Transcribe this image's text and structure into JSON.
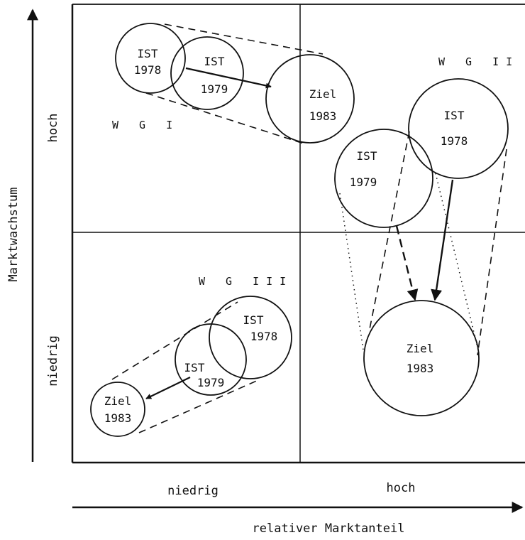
{
  "axes": {
    "y_title": "Marktwachstum",
    "x_title": "relativer Marktanteil",
    "y_high": "hoch",
    "y_low": "niedrig",
    "x_low": "niedrig",
    "x_high": "hoch"
  },
  "groups": [
    {
      "name": "W G I",
      "circles": [
        {
          "l1": "IST",
          "l2": "1978"
        },
        {
          "l1": "IST",
          "l2": "1979"
        },
        {
          "l1": "Ziel",
          "l2": "1983"
        }
      ]
    },
    {
      "name": "W G II",
      "circles": [
        {
          "l1": "IST",
          "l2": "1978"
        },
        {
          "l1": "IST",
          "l2": "1979"
        },
        {
          "l1": "Ziel",
          "l2": "1983"
        }
      ]
    },
    {
      "name": "W G III",
      "circles": [
        {
          "l1": "IST",
          "l2": "1978"
        },
        {
          "l1": "IST",
          "l2": "1979"
        },
        {
          "l1": "Ziel",
          "l2": "1983"
        }
      ]
    }
  ],
  "colors": {
    "ink": "#111111",
    "background": "#ffffff"
  }
}
